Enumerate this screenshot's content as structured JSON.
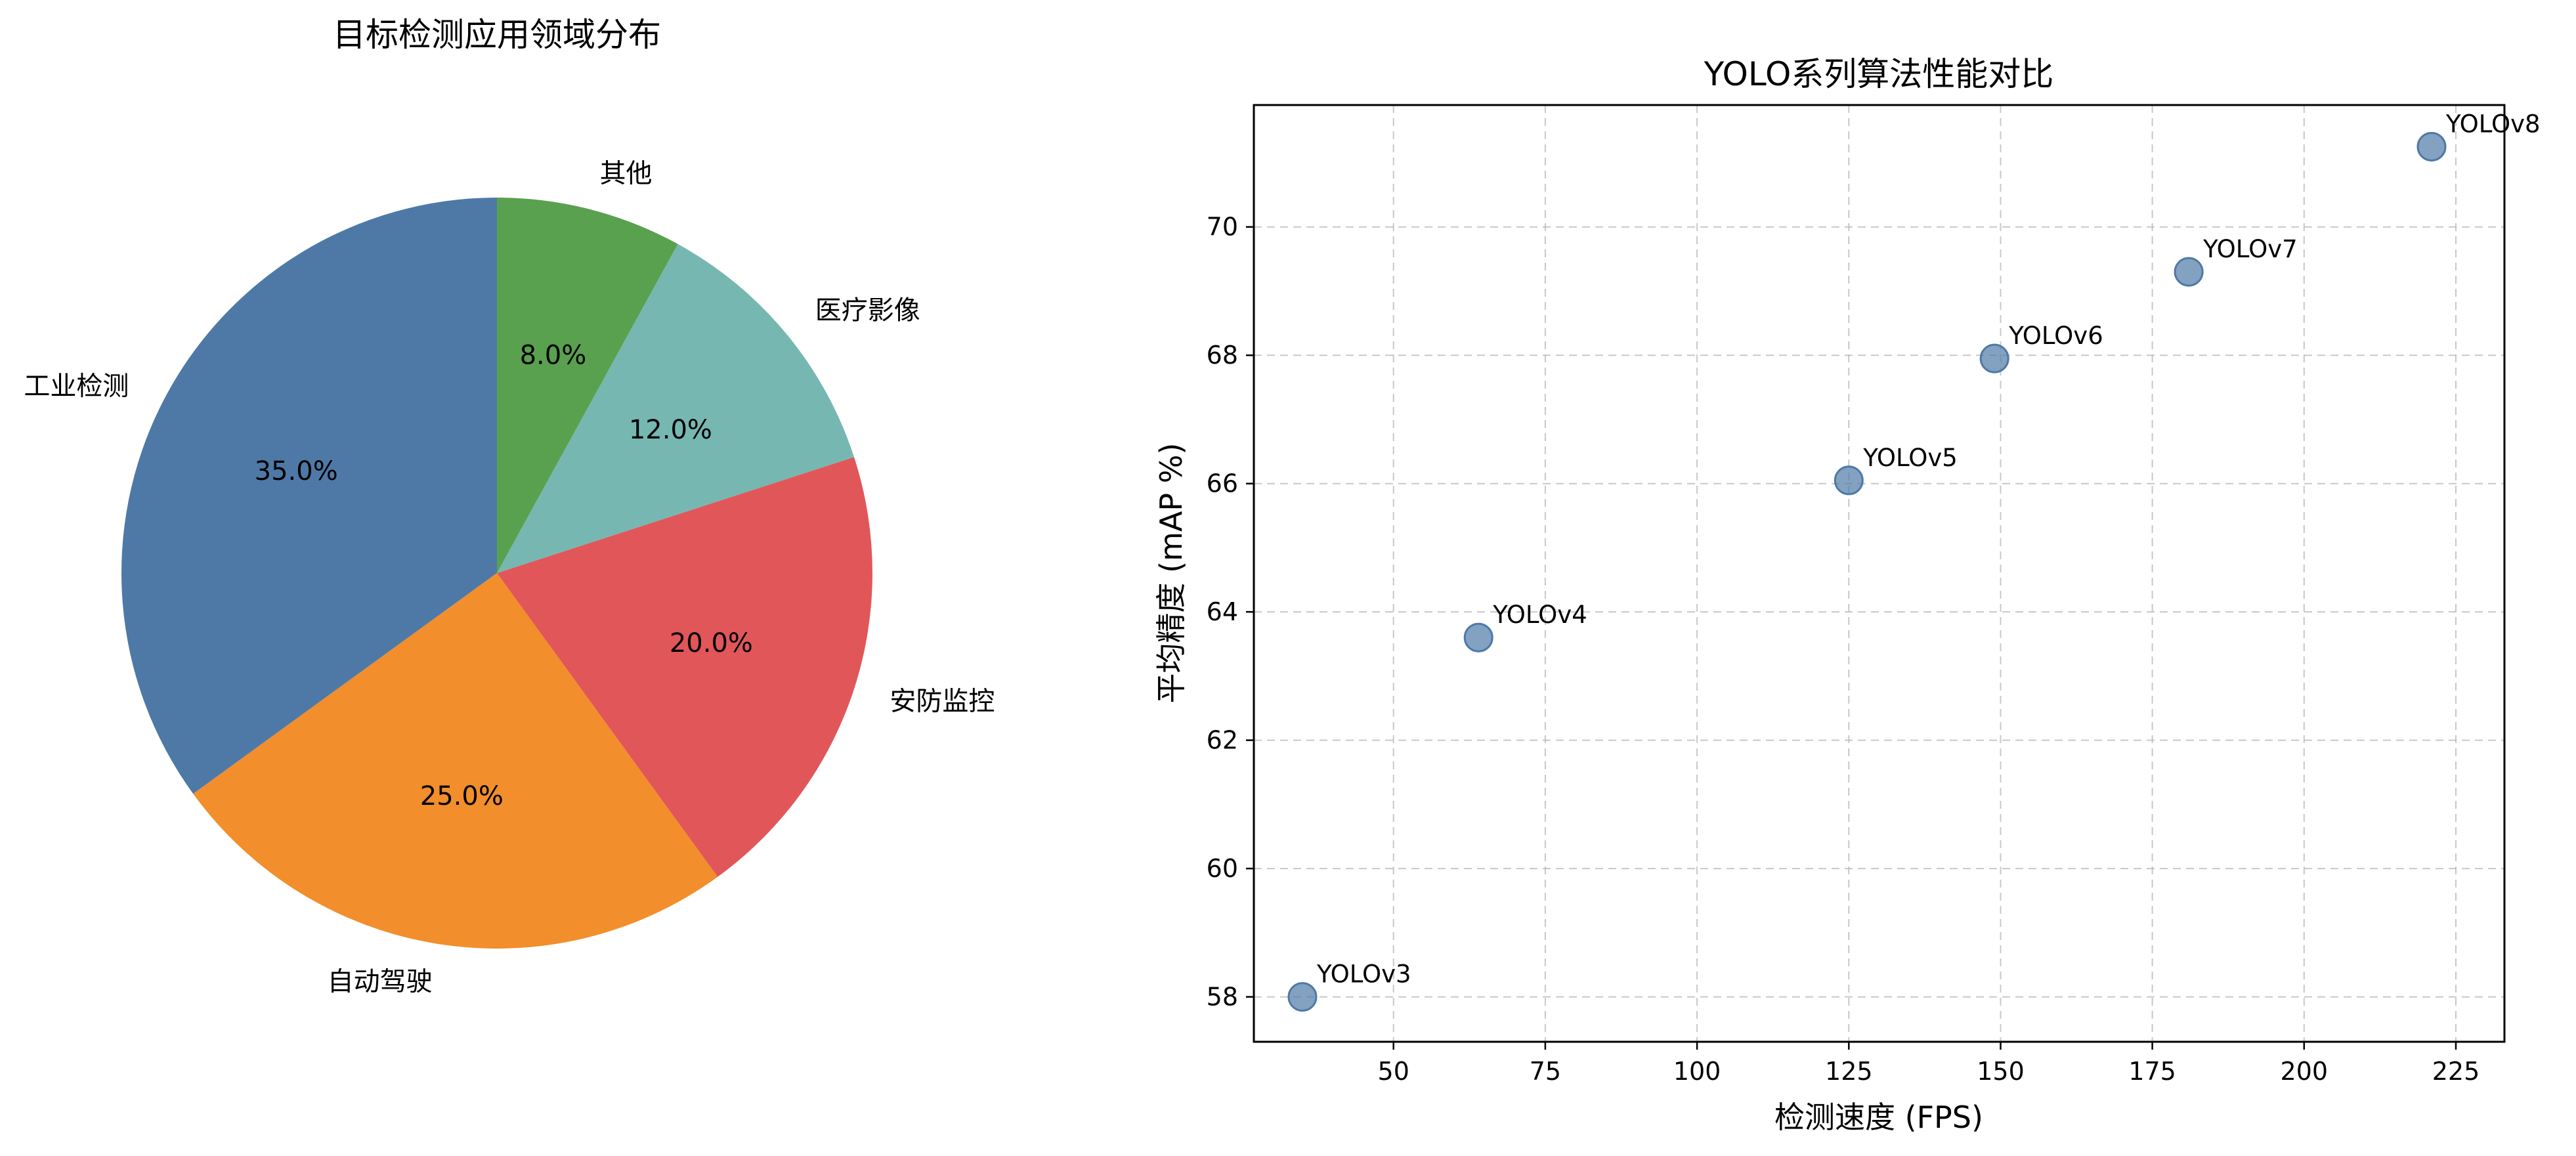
{
  "chart_data": [
    {
      "type": "pie",
      "title": "目标检测应用领域分布",
      "slices": [
        {
          "label": "工业检测",
          "value": 35.0,
          "pct_label": "35.0%",
          "color": "#4e79a7"
        },
        {
          "label": "自动驾驶",
          "value": 25.0,
          "pct_label": "25.0%",
          "color": "#f28e2b"
        },
        {
          "label": "安防监控",
          "value": 20.0,
          "pct_label": "20.0%",
          "color": "#e15759"
        },
        {
          "label": "医疗影像",
          "value": 12.0,
          "pct_label": "12.0%",
          "color": "#76b7b2"
        },
        {
          "label": "其他",
          "value": 8.0,
          "pct_label": "8.0%",
          "color": "#59a14f"
        }
      ],
      "start_angle_deg": 90,
      "direction": "counterclockwise"
    },
    {
      "type": "scatter",
      "title": "YOLO系列算法性能对比",
      "xlabel": "检测速度 (FPS)",
      "ylabel": "平均精度 (mAP %)",
      "xlim": [
        27,
        233
      ],
      "ylim": [
        57.3,
        71.9
      ],
      "xticks": [
        50,
        75,
        100,
        125,
        150,
        175,
        200,
        225
      ],
      "xtick_labels": [
        "50",
        "75",
        "100",
        "125",
        "150",
        "175",
        "200",
        "225"
      ],
      "yticks": [
        58,
        60,
        62,
        64,
        66,
        68,
        70
      ],
      "ytick_labels": [
        "58",
        "60",
        "62",
        "64",
        "66",
        "68",
        "70"
      ],
      "grid": true,
      "marker_color": "#4e79a7",
      "points": [
        {
          "label": "YOLOv3",
          "x": 35,
          "y": 58.0
        },
        {
          "label": "YOLOv4",
          "x": 64,
          "y": 63.6
        },
        {
          "label": "YOLOv5",
          "x": 125,
          "y": 66.05
        },
        {
          "label": "YOLOv6",
          "x": 149,
          "y": 67.95
        },
        {
          "label": "YOLOv7",
          "x": 181,
          "y": 69.3
        },
        {
          "label": "YOLOv8",
          "x": 221,
          "y": 71.25
        }
      ]
    }
  ]
}
